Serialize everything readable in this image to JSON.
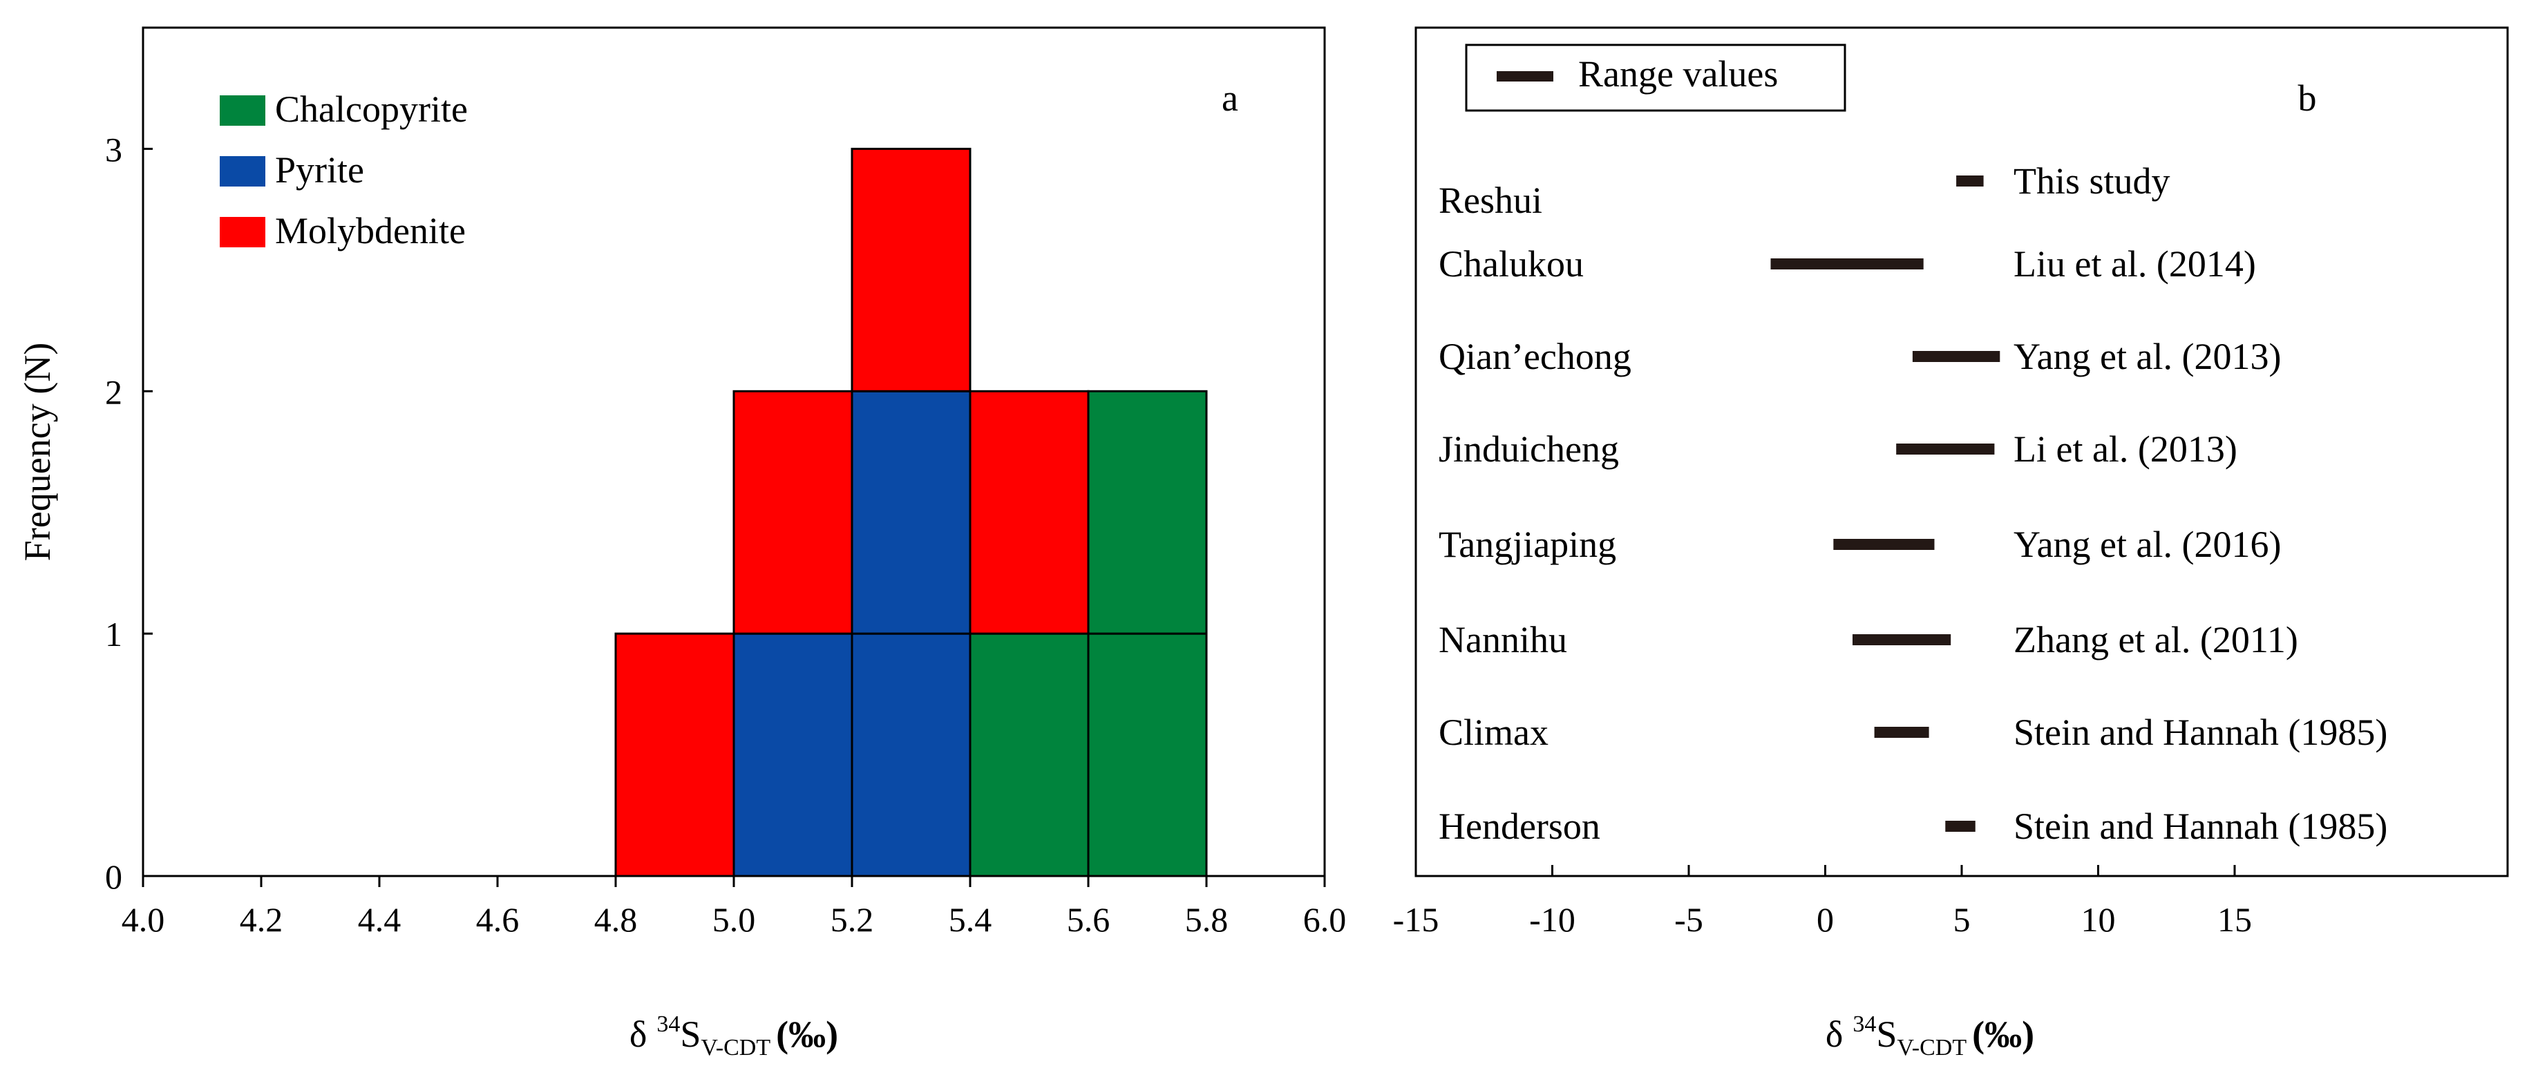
{
  "colors": {
    "chalcopyrite": "#00843d",
    "pyrite": "#0a4aa6",
    "molybdenite": "#ff0000",
    "range_bar": "#231815",
    "axis": "#000000"
  },
  "chart_data": [
    {
      "type": "bar",
      "panel_label": "a",
      "title": "",
      "xlabel_delta": "δ",
      "xlabel_sup": "34",
      "xlabel_S": "S",
      "xlabel_sub": "V-CDT",
      "xlabel_unit": "(‰)",
      "ylabel": "Frequency (N)",
      "xlim": [
        4.0,
        6.0
      ],
      "ylim": [
        0,
        3.5
      ],
      "x_ticks": [
        "4.0",
        "4.2",
        "4.4",
        "4.6",
        "4.8",
        "5.0",
        "5.2",
        "5.4",
        "5.6",
        "5.8",
        "6.0"
      ],
      "y_ticks": [
        "0",
        "1",
        "2",
        "3"
      ],
      "bins": [
        {
          "range": [
            4.8,
            5.0
          ],
          "stack": [
            {
              "mineral": "Molybdenite",
              "count": 1
            }
          ]
        },
        {
          "range": [
            5.0,
            5.2
          ],
          "stack": [
            {
              "mineral": "Pyrite",
              "count": 1
            },
            {
              "mineral": "Molybdenite",
              "count": 1
            }
          ]
        },
        {
          "range": [
            5.2,
            5.4
          ],
          "stack": [
            {
              "mineral": "Pyrite",
              "count": 2
            },
            {
              "mineral": "Molybdenite",
              "count": 1
            }
          ]
        },
        {
          "range": [
            5.4,
            5.6
          ],
          "stack": [
            {
              "mineral": "Chalcopyrite",
              "count": 1
            },
            {
              "mineral": "Molybdenite",
              "count": 1
            }
          ]
        },
        {
          "range": [
            5.6,
            5.8
          ],
          "stack": [
            {
              "mineral": "Chalcopyrite",
              "count": 2
            }
          ]
        }
      ],
      "legend": [
        {
          "label": "Chalcopyrite",
          "color": "#00843d"
        },
        {
          "label": "Pyrite",
          "color": "#0a4aa6"
        },
        {
          "label": "Molybdenite",
          "color": "#ff0000"
        }
      ],
      "legend_position": "top-left"
    },
    {
      "type": "range",
      "panel_label": "b",
      "legend_label": "Range values",
      "xlabel_delta": "δ",
      "xlabel_sup": "34",
      "xlabel_S": "S",
      "xlabel_sub": "V-CDT",
      "xlabel_unit": "(‰)",
      "xlim": [
        -15,
        25
      ],
      "x_ticks": [
        "-15",
        "-10",
        "-5",
        "0",
        "5",
        "10",
        "15"
      ],
      "deposits": [
        {
          "name": "Reshui",
          "source": "This study",
          "min": 4.8,
          "max": 5.8
        },
        {
          "name": "Chalukou",
          "source": "Liu et al. (2014)",
          "min": -2.0,
          "max": 3.6
        },
        {
          "name": "Qian’echong",
          "source": "Yang et al. (2013)",
          "min": 3.2,
          "max": 6.4
        },
        {
          "name": "Jinduicheng",
          "source": "Li et al. (2013)",
          "min": 2.6,
          "max": 6.2
        },
        {
          "name": "Tangjiaping",
          "source": "Yang et al. (2016)",
          "min": 0.3,
          "max": 4.0
        },
        {
          "name": "Nannihu",
          "source": "Zhang et al. (2011)",
          "min": 1.0,
          "max": 4.6
        },
        {
          "name": "Climax",
          "source": "Stein and Hannah (1985)",
          "min": 1.8,
          "max": 3.8
        },
        {
          "name": "Henderson",
          "source": "Stein and Hannah (1985)",
          "min": 4.4,
          "max": 5.5
        }
      ]
    }
  ]
}
